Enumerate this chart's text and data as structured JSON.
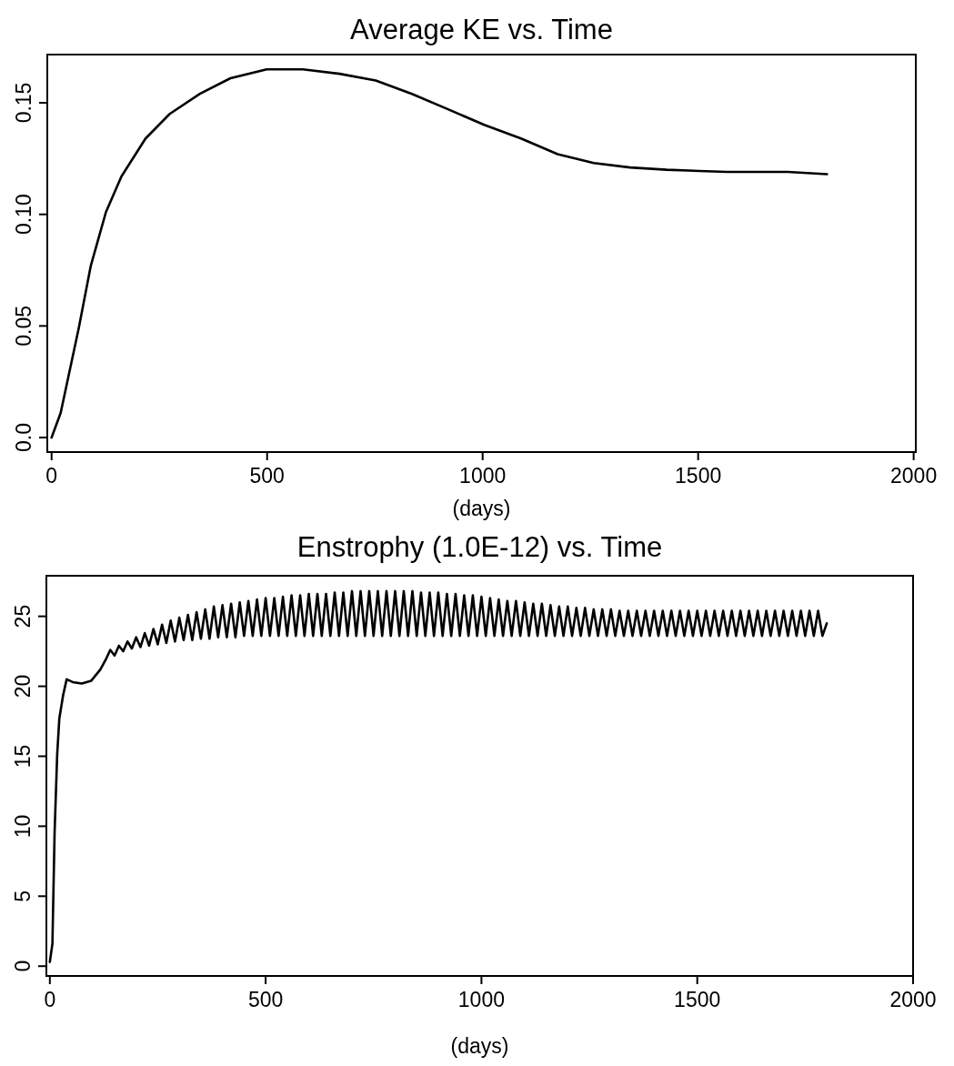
{
  "chart_data": [
    {
      "type": "line",
      "title": "Average KE vs. Time",
      "xlabel": "(days)",
      "color": "#000000",
      "x": [
        0,
        21,
        63,
        91,
        126,
        162,
        218,
        274,
        344,
        415,
        499,
        583,
        668,
        752,
        836,
        921,
        1005,
        1089,
        1174,
        1258,
        1342,
        1427,
        1567,
        1708,
        1799
      ],
      "values": [
        0,
        0.011,
        0.049,
        0.077,
        0.101,
        0.117,
        0.134,
        0.145,
        0.154,
        0.161,
        0.165,
        0.165,
        0.163,
        0.16,
        0.154,
        0.147,
        0.14,
        0.134,
        0.127,
        0.123,
        0.121,
        0.12,
        0.119,
        0.119,
        0.118
      ],
      "xlim": [
        -10,
        2005
      ],
      "ylim": [
        -0.0065,
        0.1716
      ],
      "xticks": [
        0,
        500,
        1000,
        1500,
        2000
      ],
      "yticks": [
        {
          "value": 0,
          "label": "0.0"
        },
        0.05,
        {
          "value": 0.1,
          "label": "0.10"
        },
        0.15
      ]
    },
    {
      "type": "line",
      "title": "Enstrophy (1.0E-12) vs. Time",
      "xlabel": "(days)",
      "color": "#000000",
      "x": [
        0,
        6,
        11,
        17,
        22,
        31,
        39,
        53,
        74,
        96,
        117,
        131,
        140,
        150,
        160,
        170,
        180,
        190,
        200,
        210,
        220,
        230,
        240,
        250,
        260,
        270,
        280,
        290,
        300,
        310,
        320,
        330,
        340,
        350,
        360,
        370,
        380,
        390,
        400,
        410,
        420,
        430,
        440,
        450,
        460,
        470,
        480,
        490,
        500,
        510,
        520,
        530,
        540,
        550,
        560,
        570,
        580,
        590,
        600,
        610,
        620,
        630,
        640,
        650,
        660,
        670,
        680,
        690,
        700,
        710,
        720,
        730,
        740,
        750,
        760,
        770,
        780,
        790,
        800,
        810,
        820,
        830,
        840,
        850,
        860,
        870,
        880,
        890,
        900,
        910,
        920,
        930,
        940,
        950,
        960,
        970,
        980,
        990,
        1000,
        1010,
        1020,
        1030,
        1040,
        1050,
        1060,
        1070,
        1080,
        1090,
        1100,
        1110,
        1120,
        1130,
        1140,
        1150,
        1160,
        1170,
        1180,
        1190,
        1200,
        1210,
        1220,
        1230,
        1240,
        1250,
        1260,
        1270,
        1280,
        1290,
        1300,
        1310,
        1320,
        1330,
        1340,
        1350,
        1360,
        1370,
        1380,
        1390,
        1400,
        1410,
        1420,
        1430,
        1440,
        1450,
        1460,
        1470,
        1480,
        1490,
        1500,
        1510,
        1520,
        1530,
        1540,
        1550,
        1560,
        1570,
        1580,
        1590,
        1600,
        1610,
        1620,
        1630,
        1640,
        1650,
        1660,
        1670,
        1680,
        1690,
        1700,
        1710,
        1720,
        1730,
        1740,
        1750,
        1760,
        1770,
        1780,
        1790,
        1800
      ],
      "values": [
        0.3,
        1.6,
        9.5,
        15.1,
        17.7,
        19.4,
        20.5,
        20.3,
        20.2,
        20.4,
        21.2,
        22.0,
        22.6,
        22.2,
        22.9,
        22.5,
        23.2,
        22.7,
        23.5,
        22.8,
        23.8,
        22.9,
        24.1,
        23.0,
        24.4,
        23.1,
        24.7,
        23.2,
        24.9,
        23.3,
        25.1,
        23.3,
        25.3,
        23.4,
        25.5,
        23.4,
        25.7,
        23.5,
        25.8,
        23.5,
        25.9,
        23.5,
        26.0,
        23.6,
        26.1,
        23.6,
        26.2,
        23.6,
        26.3,
        23.6,
        26.3,
        23.6,
        26.4,
        23.6,
        26.5,
        23.6,
        26.5,
        23.6,
        26.6,
        23.6,
        26.6,
        23.6,
        26.6,
        23.6,
        26.7,
        23.6,
        26.7,
        23.6,
        26.8,
        23.6,
        26.8,
        23.6,
        26.8,
        23.6,
        26.8,
        23.6,
        26.8,
        23.6,
        26.8,
        23.6,
        26.8,
        23.6,
        26.8,
        23.6,
        26.7,
        23.6,
        26.7,
        23.6,
        26.7,
        23.6,
        26.6,
        23.6,
        26.6,
        23.6,
        26.5,
        23.6,
        26.5,
        23.6,
        26.4,
        23.6,
        26.3,
        23.6,
        26.2,
        23.6,
        26.1,
        23.6,
        26.1,
        23.6,
        26.0,
        23.6,
        25.9,
        23.6,
        25.9,
        23.6,
        25.8,
        23.6,
        25.7,
        23.6,
        25.7,
        23.6,
        25.6,
        23.6,
        25.6,
        23.6,
        25.5,
        23.6,
        25.5,
        23.6,
        25.5,
        23.6,
        25.4,
        23.6,
        25.4,
        23.6,
        25.4,
        23.6,
        25.4,
        23.6,
        25.4,
        23.6,
        25.4,
        23.6,
        25.4,
        23.6,
        25.4,
        23.6,
        25.4,
        23.6,
        25.4,
        23.6,
        25.4,
        23.6,
        25.4,
        23.6,
        25.4,
        23.6,
        25.4,
        23.6,
        25.4,
        23.6,
        25.4,
        23.6,
        25.4,
        23.6,
        25.4,
        23.6,
        25.4,
        23.6,
        25.4,
        23.6,
        25.4,
        23.6,
        25.4,
        23.6,
        25.4,
        23.6,
        25.4,
        23.6,
        24.5
      ],
      "xlim": [
        -8,
        2000
      ],
      "ylim": [
        -0.7,
        27.9
      ],
      "xticks": [
        0,
        500,
        1000,
        1500,
        2000
      ],
      "yticks": [
        0,
        5,
        10,
        15,
        20,
        25
      ]
    }
  ]
}
